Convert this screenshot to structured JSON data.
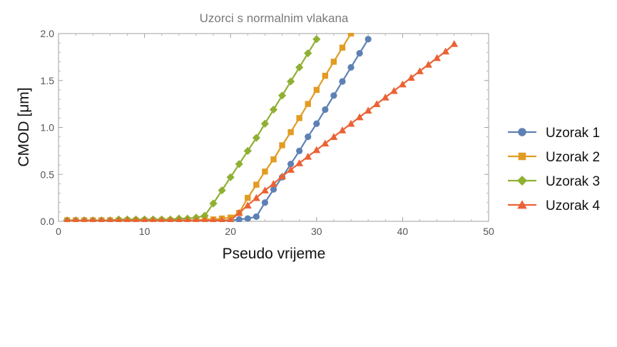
{
  "chart_data": {
    "type": "line",
    "title": "Uzorci s normalnim vlakana",
    "xlabel": "Pseudo vrijeme",
    "ylabel": "CMOD [μm]",
    "xlim": [
      0,
      50
    ],
    "ylim": [
      0,
      2.0
    ],
    "xticks": [
      0,
      10,
      20,
      30,
      40,
      50
    ],
    "yticks": [
      0.0,
      0.5,
      1.0,
      1.5,
      2.0
    ],
    "xtick_labels": [
      "0",
      "10",
      "20",
      "30",
      "40",
      "50"
    ],
    "ytick_labels": [
      "0.0",
      "0.5",
      "1.0",
      "1.5",
      "2.0"
    ],
    "legend_position": "right",
    "grid": false,
    "series": [
      {
        "name": "Uzorak 1",
        "color": "#5e81b5",
        "marker": "circle",
        "x": [
          1,
          2,
          3,
          4,
          5,
          6,
          7,
          8,
          9,
          10,
          11,
          12,
          13,
          14,
          15,
          16,
          17,
          18,
          19,
          20,
          21,
          22,
          23,
          24,
          25,
          26,
          27,
          28,
          29,
          30,
          31,
          32,
          33,
          34,
          35,
          36
        ],
        "y": [
          0.01,
          0.01,
          0.01,
          0.01,
          0.01,
          0.01,
          0.01,
          0.01,
          0.01,
          0.01,
          0.01,
          0.01,
          0.01,
          0.01,
          0.01,
          0.01,
          0.01,
          0.01,
          0.01,
          0.01,
          0.02,
          0.03,
          0.05,
          0.2,
          0.34,
          0.47,
          0.61,
          0.75,
          0.9,
          1.04,
          1.19,
          1.34,
          1.49,
          1.64,
          1.79,
          1.94
        ]
      },
      {
        "name": "Uzorak 2",
        "color": "#e19c24",
        "marker": "square",
        "x": [
          1,
          2,
          3,
          4,
          5,
          6,
          7,
          8,
          9,
          10,
          11,
          12,
          13,
          14,
          15,
          16,
          17,
          18,
          19,
          20,
          21,
          22,
          23,
          24,
          25,
          26,
          27,
          28,
          29,
          30,
          31,
          32,
          33,
          34
        ],
        "y": [
          0.01,
          0.01,
          0.01,
          0.01,
          0.01,
          0.01,
          0.01,
          0.01,
          0.01,
          0.01,
          0.01,
          0.01,
          0.01,
          0.01,
          0.01,
          0.01,
          0.02,
          0.02,
          0.03,
          0.04,
          0.09,
          0.25,
          0.39,
          0.53,
          0.66,
          0.81,
          0.95,
          1.1,
          1.25,
          1.4,
          1.55,
          1.7,
          1.85,
          2.0
        ]
      },
      {
        "name": "Uzorak 3",
        "color": "#8fb032",
        "marker": "diamond",
        "x": [
          1,
          2,
          3,
          4,
          5,
          6,
          7,
          8,
          9,
          10,
          11,
          12,
          13,
          14,
          15,
          16,
          17,
          18,
          19,
          20,
          21,
          22,
          23,
          24,
          25,
          26,
          27,
          28,
          29,
          30
        ],
        "y": [
          0.01,
          0.01,
          0.01,
          0.01,
          0.01,
          0.01,
          0.02,
          0.02,
          0.02,
          0.02,
          0.02,
          0.02,
          0.02,
          0.03,
          0.03,
          0.04,
          0.06,
          0.19,
          0.33,
          0.47,
          0.61,
          0.75,
          0.89,
          1.04,
          1.19,
          1.34,
          1.49,
          1.64,
          1.79,
          1.94
        ]
      },
      {
        "name": "Uzorak 4",
        "color": "#eb6235",
        "marker": "triangle",
        "x": [
          1,
          2,
          3,
          4,
          5,
          6,
          7,
          8,
          9,
          10,
          11,
          12,
          13,
          14,
          15,
          16,
          17,
          18,
          19,
          20,
          21,
          22,
          23,
          24,
          25,
          26,
          27,
          28,
          29,
          30,
          31,
          32,
          33,
          34,
          35,
          36,
          37,
          38,
          39,
          40,
          41,
          42,
          43,
          44,
          45,
          46
        ],
        "y": [
          0.01,
          0.01,
          0.01,
          0.01,
          0.01,
          0.01,
          0.01,
          0.01,
          0.01,
          0.01,
          0.01,
          0.01,
          0.01,
          0.01,
          0.01,
          0.01,
          0.01,
          0.01,
          0.01,
          0.01,
          0.09,
          0.17,
          0.25,
          0.33,
          0.4,
          0.48,
          0.55,
          0.62,
          0.69,
          0.76,
          0.83,
          0.9,
          0.97,
          1.04,
          1.11,
          1.18,
          1.25,
          1.32,
          1.39,
          1.46,
          1.53,
          1.6,
          1.67,
          1.74,
          1.81,
          1.89
        ]
      }
    ]
  }
}
